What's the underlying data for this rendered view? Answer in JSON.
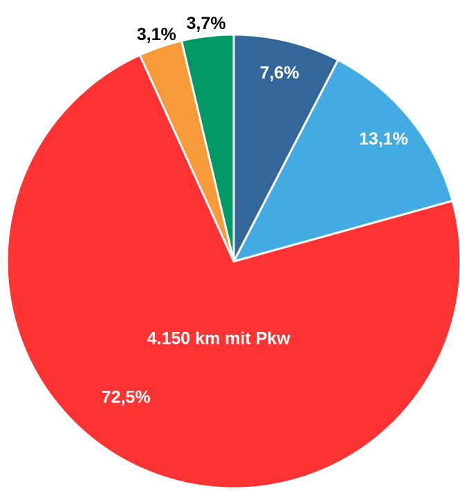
{
  "chart_data": {
    "type": "pie",
    "categories": [
      null,
      null,
      null,
      null,
      null
    ],
    "values": [
      7.6,
      13.1,
      72.5,
      3.1,
      3.7
    ],
    "value_labels": [
      "7,6%",
      "13,1%",
      "72,5%",
      "3,1%",
      "3,7%"
    ],
    "colors": [
      "#336699",
      "#41abe2",
      "#ff3333",
      "#f79a3a",
      "#009966"
    ],
    "annotation": "4.150 km mit Pkw"
  }
}
